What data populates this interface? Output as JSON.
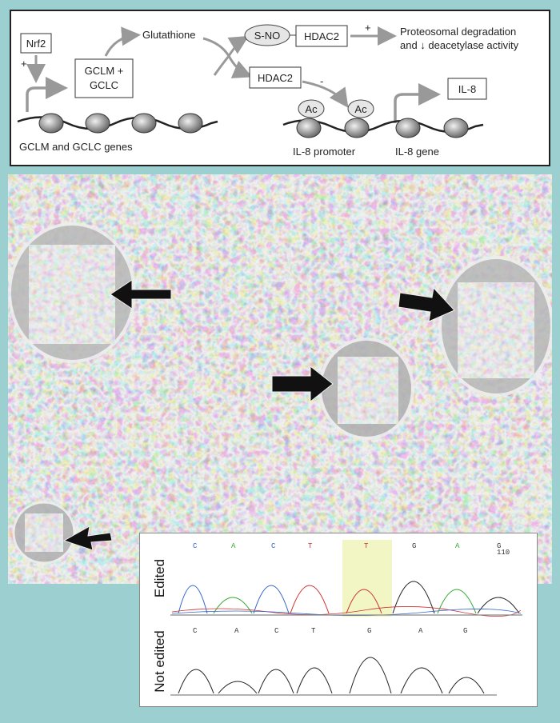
{
  "diagram": {
    "nrf2": "Nrf2",
    "plus_nrf2": "+",
    "gclm_gclc_line1": "GCLM +",
    "gclm_gclc_line2": "GCLC",
    "glutathione": "Glutathione",
    "sno": "S-NO",
    "hdac2_top": "HDAC2",
    "plus_hdac2": "+",
    "proteosomal_line1": "Proteosomal degradation",
    "proteosomal_line2": "and ↓ deacetylase activity",
    "hdac2_mid": "HDAC2",
    "minus_hdac2": "-",
    "ac1": "Ac",
    "ac2": "Ac",
    "il8_box": "IL-8",
    "gclm_genes": "GCLM and GCLC genes",
    "il8_promoter": "IL-8 promoter",
    "il8_gene": "IL-8 gene"
  },
  "sequencing": {
    "edited_label": "Edited",
    "not_edited_label": "Not edited",
    "edited_bases": [
      "C",
      "A",
      "C",
      "T",
      "T",
      "G",
      "A",
      "G"
    ],
    "not_edited_bases": [
      "C",
      "A",
      "C",
      "T",
      "G",
      "A",
      "G"
    ],
    "position_number": "110",
    "highlight_color": "#f2f5c4"
  }
}
